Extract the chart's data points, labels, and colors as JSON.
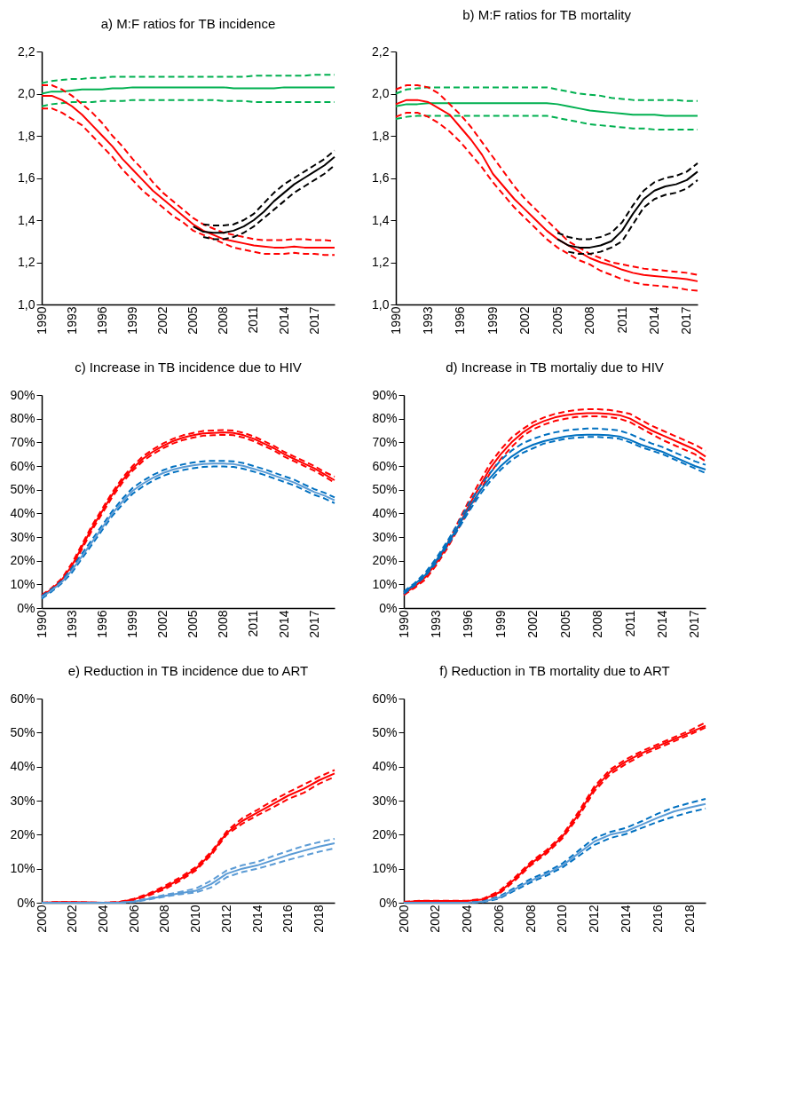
{
  "chart_data": [
    {
      "type": "line",
      "title": "a) M:F ratios for TB incidence",
      "categories": [
        "1990",
        null,
        null,
        "1993",
        null,
        null,
        "1996",
        null,
        null,
        "1999",
        null,
        null,
        "2002",
        null,
        null,
        "2005",
        null,
        null,
        "2008",
        null,
        null,
        "2011",
        null,
        null,
        "2014",
        null,
        null,
        "2017",
        null,
        null
      ],
      "ylim": [
        1.0,
        2.2
      ],
      "yticks": [
        {
          "value": 1.0,
          "label": "1,0"
        },
        {
          "value": 1.2,
          "label": "1,2"
        },
        {
          "value": 1.4,
          "label": "1,4"
        },
        {
          "value": 1.6,
          "label": "1,6"
        },
        {
          "value": 1.8,
          "label": "1,8"
        },
        {
          "value": 2.0,
          "label": "2,0"
        },
        {
          "value": 2.2,
          "label": "2,2"
        }
      ],
      "series": [
        {
          "color": "#00b050",
          "line_style": "dashed",
          "values": [
            1.94,
            1.95,
            1.955,
            1.96,
            1.96,
            1.96,
            1.965,
            1.965,
            1.965,
            1.97,
            1.97,
            1.97,
            1.97,
            1.97,
            1.97,
            1.97,
            1.97,
            1.97,
            1.965,
            1.965,
            1.965,
            1.96,
            1.96,
            1.96,
            1.96,
            1.96,
            1.96,
            1.96,
            1.96,
            1.96
          ]
        },
        {
          "color": "#00b050",
          "line_style": "dashed",
          "values": [
            2.05,
            2.06,
            2.065,
            2.07,
            2.07,
            2.075,
            2.075,
            2.08,
            2.08,
            2.08,
            2.08,
            2.08,
            2.08,
            2.08,
            2.08,
            2.08,
            2.08,
            2.08,
            2.08,
            2.08,
            2.08,
            2.085,
            2.085,
            2.085,
            2.085,
            2.085,
            2.085,
            2.09,
            2.09,
            2.09
          ]
        },
        {
          "color": "#00b050",
          "line_style": "solid",
          "values": [
            2.0,
            2.01,
            2.01,
            2.015,
            2.02,
            2.02,
            2.02,
            2.025,
            2.025,
            2.03,
            2.03,
            2.03,
            2.03,
            2.03,
            2.03,
            2.03,
            2.03,
            2.03,
            2.03,
            2.025,
            2.025,
            2.025,
            2.025,
            2.025,
            2.03,
            2.03,
            2.03,
            2.03,
            2.03,
            2.03
          ]
        },
        {
          "color": "#ff0000",
          "line_style": "dashed",
          "values": [
            1.93,
            1.93,
            1.91,
            1.88,
            1.85,
            1.8,
            1.75,
            1.7,
            1.64,
            1.59,
            1.54,
            1.5,
            1.46,
            1.42,
            1.39,
            1.35,
            1.33,
            1.31,
            1.29,
            1.27,
            1.26,
            1.25,
            1.24,
            1.24,
            1.24,
            1.245,
            1.24,
            1.24,
            1.235,
            1.235
          ]
        },
        {
          "color": "#ff0000",
          "line_style": "dashed",
          "values": [
            2.04,
            2.04,
            2.02,
            1.99,
            1.95,
            1.91,
            1.86,
            1.8,
            1.75,
            1.69,
            1.64,
            1.58,
            1.53,
            1.49,
            1.45,
            1.41,
            1.38,
            1.36,
            1.34,
            1.33,
            1.32,
            1.31,
            1.305,
            1.305,
            1.305,
            1.31,
            1.31,
            1.305,
            1.305,
            1.3
          ]
        },
        {
          "color": "#ff0000",
          "line_style": "solid",
          "values": [
            1.99,
            1.99,
            1.97,
            1.94,
            1.9,
            1.85,
            1.8,
            1.75,
            1.69,
            1.64,
            1.59,
            1.54,
            1.5,
            1.46,
            1.42,
            1.38,
            1.35,
            1.33,
            1.31,
            1.3,
            1.29,
            1.28,
            1.275,
            1.27,
            1.27,
            1.275,
            1.27,
            1.27,
            1.27,
            1.27
          ]
        },
        {
          "color": "#000000",
          "line_style": "dashed",
          "values": [
            null,
            null,
            null,
            null,
            null,
            null,
            null,
            null,
            null,
            null,
            null,
            null,
            null,
            null,
            null,
            null,
            1.32,
            1.31,
            1.31,
            1.32,
            1.34,
            1.37,
            1.41,
            1.45,
            1.49,
            1.53,
            1.56,
            1.59,
            1.62,
            1.66
          ]
        },
        {
          "color": "#000000",
          "line_style": "dashed",
          "values": [
            null,
            null,
            null,
            null,
            null,
            null,
            null,
            null,
            null,
            null,
            null,
            null,
            null,
            null,
            null,
            null,
            1.38,
            1.375,
            1.375,
            1.38,
            1.4,
            1.43,
            1.48,
            1.53,
            1.57,
            1.6,
            1.63,
            1.66,
            1.69,
            1.73
          ]
        },
        {
          "color": "#000000",
          "line_style": "solid",
          "values": [
            null,
            null,
            null,
            null,
            null,
            null,
            null,
            null,
            null,
            null,
            null,
            null,
            null,
            null,
            null,
            1.37,
            1.345,
            1.34,
            1.34,
            1.35,
            1.37,
            1.4,
            1.44,
            1.49,
            1.53,
            1.57,
            1.6,
            1.63,
            1.66,
            1.7
          ]
        }
      ]
    },
    {
      "type": "line",
      "title": "b) M:F ratios for TB mortality",
      "categories": [
        "1990",
        null,
        null,
        "1993",
        null,
        null,
        "1996",
        null,
        null,
        "1999",
        null,
        null,
        "2002",
        null,
        null,
        "2005",
        null,
        null,
        "2008",
        null,
        null,
        "2011",
        null,
        null,
        "2014",
        null,
        null,
        "2017",
        null
      ],
      "ylim": [
        1.0,
        2.2
      ],
      "yticks": [
        {
          "value": 1.0,
          "label": "1,0"
        },
        {
          "value": 1.2,
          "label": "1,2"
        },
        {
          "value": 1.4,
          "label": "1,4"
        },
        {
          "value": 1.6,
          "label": "1,6"
        },
        {
          "value": 1.8,
          "label": "1,8"
        },
        {
          "value": 2.0,
          "label": "2,0"
        },
        {
          "value": 2.2,
          "label": "2,2"
        }
      ],
      "series": [
        {
          "color": "#00b050",
          "line_style": "dashed",
          "values": [
            1.88,
            1.89,
            1.895,
            1.895,
            1.895,
            1.895,
            1.895,
            1.895,
            1.895,
            1.895,
            1.895,
            1.895,
            1.895,
            1.895,
            1.895,
            1.885,
            1.875,
            1.865,
            1.855,
            1.85,
            1.845,
            1.84,
            1.835,
            1.835,
            1.83,
            1.83,
            1.83,
            1.83,
            1.83
          ]
        },
        {
          "color": "#00b050",
          "line_style": "dashed",
          "values": [
            2.0,
            2.02,
            2.025,
            2.03,
            2.03,
            2.03,
            2.03,
            2.03,
            2.03,
            2.03,
            2.03,
            2.03,
            2.03,
            2.03,
            2.03,
            2.02,
            2.01,
            2.0,
            1.995,
            1.99,
            1.98,
            1.975,
            1.97,
            1.97,
            1.97,
            1.97,
            1.97,
            1.965,
            1.965
          ]
        },
        {
          "color": "#00b050",
          "line_style": "solid",
          "values": [
            1.94,
            1.95,
            1.95,
            1.955,
            1.955,
            1.955,
            1.955,
            1.955,
            1.955,
            1.955,
            1.955,
            1.955,
            1.955,
            1.955,
            1.955,
            1.95,
            1.94,
            1.93,
            1.92,
            1.915,
            1.91,
            1.905,
            1.9,
            1.9,
            1.9,
            1.895,
            1.895,
            1.895,
            1.895
          ]
        },
        {
          "color": "#ff0000",
          "line_style": "dashed",
          "values": [
            1.89,
            1.91,
            1.91,
            1.89,
            1.86,
            1.82,
            1.77,
            1.71,
            1.65,
            1.58,
            1.52,
            1.46,
            1.41,
            1.36,
            1.31,
            1.27,
            1.24,
            1.21,
            1.19,
            1.16,
            1.14,
            1.12,
            1.105,
            1.095,
            1.09,
            1.085,
            1.08,
            1.07,
            1.065
          ]
        },
        {
          "color": "#ff0000",
          "line_style": "dashed",
          "values": [
            2.02,
            2.04,
            2.04,
            2.03,
            2.0,
            1.95,
            1.9,
            1.84,
            1.77,
            1.7,
            1.63,
            1.56,
            1.5,
            1.45,
            1.4,
            1.35,
            1.3,
            1.27,
            1.24,
            1.22,
            1.2,
            1.19,
            1.18,
            1.17,
            1.165,
            1.16,
            1.155,
            1.15,
            1.14
          ]
        },
        {
          "color": "#ff0000",
          "line_style": "solid",
          "values": [
            1.95,
            1.97,
            1.97,
            1.96,
            1.93,
            1.9,
            1.84,
            1.78,
            1.71,
            1.62,
            1.56,
            1.5,
            1.45,
            1.4,
            1.35,
            1.31,
            1.28,
            1.25,
            1.22,
            1.2,
            1.185,
            1.165,
            1.15,
            1.14,
            1.135,
            1.13,
            1.125,
            1.12,
            1.11
          ]
        },
        {
          "color": "#000000",
          "line_style": "dashed",
          "values": [
            null,
            null,
            null,
            null,
            null,
            null,
            null,
            null,
            null,
            null,
            null,
            null,
            null,
            null,
            null,
            null,
            1.25,
            1.24,
            1.24,
            1.25,
            1.27,
            1.3,
            1.38,
            1.46,
            1.5,
            1.52,
            1.53,
            1.55,
            1.59
          ]
        },
        {
          "color": "#000000",
          "line_style": "dashed",
          "values": [
            null,
            null,
            null,
            null,
            null,
            null,
            null,
            null,
            null,
            null,
            null,
            null,
            null,
            null,
            null,
            1.34,
            1.32,
            1.31,
            1.31,
            1.32,
            1.34,
            1.39,
            1.47,
            1.54,
            1.58,
            1.6,
            1.61,
            1.63,
            1.67
          ]
        },
        {
          "color": "#000000",
          "line_style": "solid",
          "values": [
            null,
            null,
            null,
            null,
            null,
            null,
            null,
            null,
            null,
            null,
            null,
            null,
            null,
            null,
            null,
            1.31,
            1.28,
            1.27,
            1.27,
            1.28,
            1.3,
            1.35,
            1.43,
            1.5,
            1.54,
            1.56,
            1.57,
            1.59,
            1.63
          ]
        }
      ]
    },
    {
      "type": "line",
      "title": "c) Increase in TB incidence due to HIV",
      "categories": [
        "1990",
        null,
        null,
        "1993",
        null,
        null,
        "1996",
        null,
        null,
        "1999",
        null,
        null,
        "2002",
        null,
        null,
        "2005",
        null,
        null,
        "2008",
        null,
        null,
        "2011",
        null,
        null,
        "2014",
        null,
        null,
        "2017",
        null,
        null
      ],
      "ylim": [
        0,
        90
      ],
      "yticks": [
        {
          "value": 0,
          "label": "0%"
        },
        {
          "value": 10,
          "label": "10%"
        },
        {
          "value": 20,
          "label": "20%"
        },
        {
          "value": 30,
          "label": "30%"
        },
        {
          "value": 40,
          "label": "40%"
        },
        {
          "value": 50,
          "label": "50%"
        },
        {
          "value": 60,
          "label": "60%"
        },
        {
          "value": 70,
          "label": "70%"
        },
        {
          "value": 80,
          "label": "80%"
        },
        {
          "value": 90,
          "label": "90%"
        }
      ],
      "series": [
        {
          "color": "#ff0000",
          "line_style": "dashed",
          "values": [
            4.5,
            7.5,
            11.5,
            17,
            25,
            33,
            40,
            47,
            53,
            58,
            62,
            65,
            67.5,
            69.5,
            71,
            72,
            72.8,
            73,
            73.2,
            73,
            72,
            70.5,
            68.5,
            66.5,
            64,
            62,
            60,
            58,
            55.5,
            53
          ]
        },
        {
          "color": "#ff0000",
          "line_style": "dashed",
          "values": [
            5.5,
            8.5,
            12.5,
            19,
            27,
            35,
            42,
            49,
            55,
            60,
            64,
            67,
            69.5,
            71.5,
            73,
            74,
            74.8,
            75,
            75.2,
            75,
            74,
            72.5,
            70.5,
            68.5,
            66,
            64,
            62,
            60,
            57.5,
            55.5
          ]
        },
        {
          "color": "#ff0000",
          "line_style": "solid",
          "values": [
            5,
            8,
            12,
            18,
            26,
            34,
            41,
            48,
            54,
            59,
            63,
            66,
            68.5,
            70.5,
            72,
            73,
            73.8,
            74,
            74.2,
            74,
            73,
            71.5,
            69.5,
            67.5,
            65,
            63,
            61,
            59,
            56.5,
            54
          ]
        },
        {
          "color": "#0070c0",
          "line_style": "dashed",
          "values": [
            4,
            7,
            10.5,
            15,
            21,
            27,
            33,
            39,
            43.8,
            48.3,
            51.3,
            53.8,
            55.8,
            57.3,
            58.3,
            59.1,
            59.6,
            59.8,
            59.8,
            59.6,
            58.8,
            57.6,
            56.3,
            54.8,
            53.3,
            51.8,
            49.8,
            47.8,
            46.3,
            44.3
          ]
        },
        {
          "color": "#0070c0",
          "line_style": "dashed",
          "values": [
            5,
            8,
            11.5,
            17,
            23,
            29,
            35,
            41,
            46.2,
            50.7,
            53.7,
            56.2,
            58.2,
            59.7,
            60.7,
            61.5,
            62,
            62.2,
            62.2,
            62,
            61.2,
            60,
            58.7,
            57.2,
            55.7,
            54.2,
            52.2,
            50.2,
            48.7,
            46.7
          ]
        },
        {
          "color": "#5b9bd5",
          "line_style": "solid",
          "values": [
            4.5,
            7.5,
            11,
            16,
            22,
            28,
            34,
            40,
            45,
            49.5,
            52.5,
            55,
            57,
            58.5,
            59.5,
            60.3,
            60.8,
            61,
            61,
            60.8,
            60,
            58.8,
            57.5,
            56,
            54.5,
            53,
            51,
            49,
            47.5,
            45.5
          ]
        }
      ]
    },
    {
      "type": "line",
      "title": "d) Increase in TB mortaliy due to HIV",
      "categories": [
        "1990",
        null,
        null,
        "1993",
        null,
        null,
        "1996",
        null,
        null,
        "1999",
        null,
        null,
        "2002",
        null,
        null,
        "2005",
        null,
        null,
        "2008",
        null,
        null,
        "2011",
        null,
        null,
        "2014",
        null,
        null,
        "2017",
        null
      ],
      "ylim": [
        0,
        90
      ],
      "yticks": [
        {
          "value": 0,
          "label": "0%"
        },
        {
          "value": 10,
          "label": "10%"
        },
        {
          "value": 20,
          "label": "20%"
        },
        {
          "value": 30,
          "label": "30%"
        },
        {
          "value": 40,
          "label": "40%"
        },
        {
          "value": 50,
          "label": "50%"
        },
        {
          "value": 60,
          "label": "60%"
        },
        {
          "value": 70,
          "label": "70%"
        },
        {
          "value": 80,
          "label": "80%"
        },
        {
          "value": 90,
          "label": "90%"
        }
      ],
      "series": [
        {
          "color": "#ff0000",
          "line_style": "dashed",
          "values": [
            5.5,
            8.5,
            12,
            18,
            25,
            33,
            41,
            49,
            57,
            63,
            68,
            72.5,
            75.5,
            77.5,
            79,
            80,
            80.7,
            81,
            81,
            80.7,
            80,
            78.5,
            76,
            73.5,
            71,
            69,
            67,
            65,
            62
          ]
        },
        {
          "color": "#ff0000",
          "line_style": "dashed",
          "values": [
            6.5,
            10,
            14,
            20,
            27,
            36,
            45,
            53,
            61,
            67,
            72,
            75.5,
            78.5,
            80.5,
            82,
            83,
            83.7,
            84,
            84,
            83.7,
            83,
            82,
            79.5,
            77,
            75,
            73,
            71,
            69,
            66.5
          ]
        },
        {
          "color": "#ff0000",
          "line_style": "solid",
          "values": [
            6,
            9,
            13,
            19,
            26,
            34,
            43,
            51,
            59,
            65,
            70,
            74,
            77,
            79,
            80.5,
            81.5,
            82,
            82.3,
            82.3,
            82,
            81.5,
            80,
            77.5,
            75,
            73,
            71,
            69,
            67,
            64
          ]
        },
        {
          "color": "#0070c0",
          "line_style": "dashed",
          "values": [
            6,
            9.5,
            13.5,
            19,
            26,
            33,
            40.5,
            47.5,
            53.5,
            58.5,
            62.5,
            65.5,
            67.5,
            69.5,
            70.5,
            71.5,
            72,
            72.3,
            72.3,
            72,
            71.5,
            70,
            68,
            66.5,
            65,
            63,
            61,
            59,
            57
          ]
        },
        {
          "color": "#0070c0",
          "line_style": "dashed",
          "values": [
            7,
            10.5,
            15,
            21,
            28,
            35.5,
            44,
            51,
            57,
            62.5,
            66.5,
            69.5,
            71.5,
            73,
            74.2,
            75,
            75.5,
            75.8,
            75.8,
            75.5,
            75,
            73.5,
            71.5,
            69.5,
            68,
            66,
            64,
            62,
            60.5
          ]
        },
        {
          "color": "#0070c0",
          "line_style": "solid",
          "values": [
            6.5,
            10,
            14,
            20,
            27,
            34,
            42,
            49,
            55,
            60,
            64,
            67,
            69,
            70.5,
            71.5,
            72.5,
            73,
            73.2,
            73.2,
            73,
            72.5,
            71,
            69,
            67.5,
            66,
            64,
            62,
            60,
            58.5
          ]
        }
      ]
    },
    {
      "type": "line",
      "title": "e) Reduction in TB incidence due to ART",
      "categories": [
        "2000",
        null,
        "2002",
        null,
        "2004",
        null,
        "2006",
        null,
        "2008",
        null,
        "2010",
        null,
        "2012",
        null,
        "2014",
        null,
        "2016",
        null,
        "2018",
        null
      ],
      "ylim": [
        0,
        60
      ],
      "yticks": [
        {
          "value": 0,
          "label": "0%"
        },
        {
          "value": 10,
          "label": "10%"
        },
        {
          "value": 20,
          "label": "20%"
        },
        {
          "value": 30,
          "label": "30%"
        },
        {
          "value": 40,
          "label": "40%"
        },
        {
          "value": 50,
          "label": "50%"
        },
        {
          "value": 60,
          "label": "60%"
        }
      ],
      "series": [
        {
          "color": "#ff0000",
          "line_style": "dashed",
          "values": [
            0,
            0.1,
            0.1,
            0,
            0,
            0.1,
            0.8,
            2.2,
            4,
            6.5,
            9.5,
            14,
            20,
            23.2,
            25.7,
            28,
            30.5,
            32.3,
            35,
            37
          ]
        },
        {
          "color": "#ff0000",
          "line_style": "dashed",
          "values": [
            0,
            0.2,
            0.2,
            0.1,
            0,
            0.2,
            1.2,
            2.8,
            5,
            7.5,
            10.5,
            15,
            21,
            24.8,
            27.3,
            30,
            32.5,
            34.7,
            37,
            39
          ]
        },
        {
          "color": "#ff0000",
          "line_style": "solid",
          "values": [
            0,
            0.2,
            0.2,
            0.1,
            0,
            0.2,
            1,
            2.5,
            4.5,
            7,
            10,
            14.5,
            20.5,
            24,
            26.5,
            29,
            31.5,
            33.5,
            36,
            38
          ]
        },
        {
          "color": "#5b9bd5",
          "line_style": "dashed",
          "values": [
            0,
            0,
            0,
            0,
            0,
            0,
            0.2,
            1,
            1.8,
            2.5,
            3,
            4.5,
            7.5,
            9,
            10,
            11.3,
            12.6,
            13.8,
            15,
            16
          ]
        },
        {
          "color": "#5b9bd5",
          "line_style": "dashed",
          "values": [
            0,
            0,
            0,
            0,
            0,
            0,
            0.4,
            1.4,
            2.3,
            3.2,
            4.2,
            6.5,
            9.5,
            11,
            12,
            13.7,
            15.2,
            16.7,
            17.8,
            18.8
          ]
        },
        {
          "color": "#5b9bd5",
          "line_style": "solid",
          "values": [
            0,
            0,
            0,
            0,
            0,
            0,
            0.3,
            1.2,
            2,
            2.8,
            3.5,
            5.5,
            8.5,
            10,
            11,
            12.5,
            14,
            15.3,
            16.5,
            17.5
          ]
        }
      ]
    },
    {
      "type": "line",
      "title": "f) Reduction in TB mortality due to ART",
      "categories": [
        "2000",
        null,
        "2002",
        null,
        "2004",
        null,
        "2006",
        null,
        "2008",
        null,
        "2010",
        null,
        "2012",
        null,
        "2014",
        null,
        "2016",
        null,
        "2018",
        null
      ],
      "ylim": [
        0,
        60
      ],
      "yticks": [
        {
          "value": 0,
          "label": "0%"
        },
        {
          "value": 10,
          "label": "10%"
        },
        {
          "value": 20,
          "label": "20%"
        },
        {
          "value": 30,
          "label": "30%"
        },
        {
          "value": 40,
          "label": "40%"
        },
        {
          "value": 50,
          "label": "50%"
        },
        {
          "value": 60,
          "label": "60%"
        }
      ],
      "series": [
        {
          "color": "#ff0000",
          "line_style": "dashed",
          "values": [
            0.1,
            0.4,
            0.4,
            0.4,
            0.4,
            0.8,
            2.6,
            6.5,
            11,
            14.5,
            19,
            25.3,
            32.8,
            37.8,
            40.8,
            43.4,
            45.4,
            47.4,
            49.4,
            51.5
          ]
        },
        {
          "color": "#ff0000",
          "line_style": "dashed",
          "values": [
            0.3,
            0.6,
            0.6,
            0.6,
            0.6,
            1.2,
            3.4,
            7.5,
            12,
            15.5,
            20,
            26.7,
            34.2,
            39.2,
            42.2,
            44.6,
            46.6,
            48.6,
            50.6,
            53
          ]
        },
        {
          "color": "#ff0000",
          "line_style": "solid",
          "values": [
            0.2,
            0.5,
            0.5,
            0.5,
            0.5,
            1,
            3,
            7,
            11.5,
            15,
            19.5,
            26,
            33.5,
            38.5,
            41.5,
            44,
            46,
            48,
            50,
            52
          ]
        },
        {
          "color": "#0070c0",
          "line_style": "dashed",
          "values": [
            0,
            0,
            0,
            0,
            0,
            0.2,
            1.2,
            3.6,
            6,
            8,
            10.4,
            13.7,
            17,
            19,
            20.2,
            22,
            23.8,
            25.3,
            26.6,
            27.7
          ]
        },
        {
          "color": "#0070c0",
          "line_style": "dashed",
          "values": [
            0,
            0,
            0,
            0,
            0,
            0.4,
            1.8,
            4.4,
            7,
            9,
            11.6,
            15.3,
            19,
            20.8,
            22,
            24,
            26.2,
            28,
            29.3,
            30.5
          ]
        },
        {
          "color": "#5b9bd5",
          "line_style": "solid",
          "values": [
            0,
            0,
            0,
            0,
            0,
            0.3,
            1.5,
            4,
            6.5,
            8.5,
            11,
            14.5,
            18,
            20,
            21,
            23,
            25,
            26.8,
            28,
            29
          ]
        }
      ]
    }
  ]
}
